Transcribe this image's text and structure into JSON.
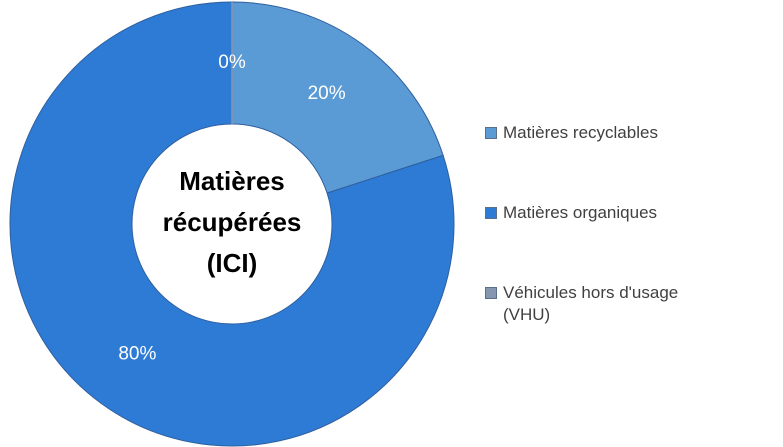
{
  "chart_data": {
    "type": "doughnut",
    "center_label": [
      "Matières",
      "récupérées",
      "(ICI)"
    ],
    "categories": [
      "Matières recyclables",
      "Matières organiques",
      "Véhicules hors d'usage (VHU)"
    ],
    "values": [
      20,
      80,
      0
    ],
    "value_labels": [
      "20%",
      "80%",
      "0%"
    ],
    "colors": [
      "#5b9bd5",
      "#2e7bd6",
      "#8496b0"
    ],
    "legend": "right"
  }
}
